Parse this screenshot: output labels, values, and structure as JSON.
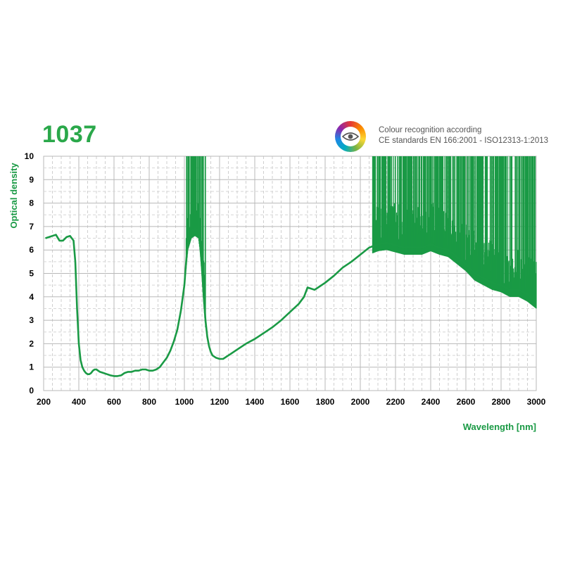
{
  "header": {
    "product_code": "1037",
    "colour_recognition_line1": "Colour recognition according",
    "colour_recognition_line2": "CE standards EN 166:2001 - ISO12313-1:2013",
    "icon": "eye-icon"
  },
  "chart_data": {
    "type": "line",
    "title": "",
    "xlabel": "Wavelength [nm]",
    "ylabel": "Optical density",
    "xlim": [
      200,
      3000
    ],
    "ylim": [
      0,
      10
    ],
    "x_ticks": [
      "200",
      "400",
      "600",
      "800",
      "1000",
      "1200",
      "1400",
      "1600",
      "1800",
      "2000",
      "2200",
      "2400",
      "2600",
      "2800",
      "3000"
    ],
    "y_ticks": [
      "0",
      "1",
      "2",
      "3",
      "4",
      "5",
      "6",
      "7",
      "8",
      "9",
      "10"
    ],
    "grid": true,
    "line_color": "#1a9a45",
    "series": [
      {
        "x": [
          210,
          230,
          250,
          270,
          290,
          310,
          330,
          350,
          360,
          370,
          380,
          390,
          400,
          410,
          420,
          430,
          440,
          450,
          460,
          470,
          480,
          490,
          500,
          520,
          540,
          560,
          580,
          600,
          620,
          640,
          660,
          680,
          700,
          720,
          740,
          760,
          780,
          800,
          820,
          840,
          860,
          880,
          900,
          920,
          940,
          960,
          980,
          1000,
          1010,
          1020,
          1040,
          1060,
          1080,
          1090,
          1100,
          1110,
          1120,
          1130,
          1140,
          1150,
          1160,
          1180,
          1200,
          1220,
          1240,
          1260,
          1280,
          1300,
          1350,
          1400,
          1450,
          1500,
          1550,
          1600,
          1650,
          1680,
          1700,
          1720,
          1740,
          1760,
          1800,
          1850,
          1900,
          1950,
          2000,
          2050,
          2100,
          2150,
          2200,
          2250,
          2300,
          2350,
          2400,
          2450,
          2500,
          2550,
          2600,
          2650,
          2700,
          2750,
          2800,
          2850,
          2900,
          2950,
          3000
        ],
        "y": [
          6.5,
          6.55,
          6.6,
          6.65,
          6.4,
          6.4,
          6.55,
          6.6,
          6.5,
          6.4,
          5.5,
          3.5,
          2.0,
          1.3,
          1.0,
          0.85,
          0.75,
          0.7,
          0.7,
          0.75,
          0.85,
          0.9,
          0.9,
          0.8,
          0.75,
          0.7,
          0.65,
          0.62,
          0.62,
          0.65,
          0.75,
          0.8,
          0.8,
          0.85,
          0.85,
          0.9,
          0.9,
          0.85,
          0.85,
          0.9,
          1.0,
          1.2,
          1.4,
          1.7,
          2.1,
          2.6,
          3.4,
          4.5,
          5.5,
          6.3,
          6.8,
          6.9,
          6.8,
          6.2,
          5.2,
          4.0,
          3.0,
          2.3,
          1.9,
          1.65,
          1.5,
          1.4,
          1.35,
          1.35,
          1.45,
          1.55,
          1.65,
          1.75,
          2.0,
          2.2,
          2.45,
          2.7,
          3.0,
          3.35,
          3.7,
          4.0,
          4.4,
          4.35,
          4.3,
          4.4,
          4.6,
          4.9,
          5.25,
          5.5,
          5.8,
          6.1,
          6.25,
          6.3,
          6.2,
          6.1,
          6.1,
          6.1,
          6.25,
          6.1,
          6.0,
          5.7,
          5.4,
          5.0,
          4.8,
          4.6,
          4.5,
          4.3,
          4.3,
          4.1,
          3.8
        ]
      }
    ],
    "noise_regions": [
      {
        "x_from": 1010,
        "x_to": 1120,
        "y_to": 10
      },
      {
        "x_from": 2070,
        "x_to": 3000,
        "y_to": 10
      }
    ]
  }
}
